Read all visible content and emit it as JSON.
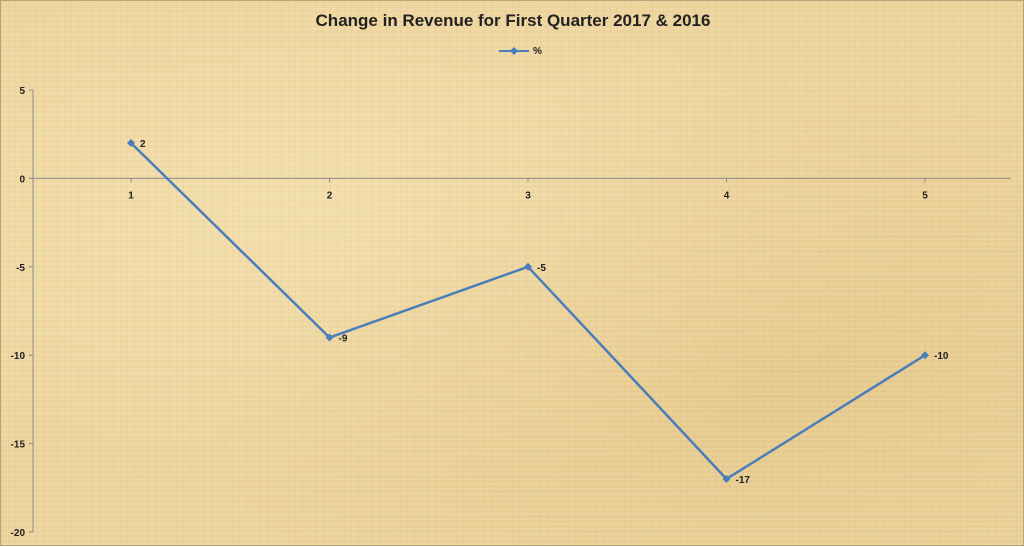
{
  "chart_data": {
    "type": "line",
    "title": "Change in Revenue for First Quarter 2017 & 2016",
    "x": [
      1,
      2,
      3,
      4,
      5
    ],
    "series": [
      {
        "name": "%",
        "values": [
          2,
          -9,
          -5,
          -17,
          -10
        ],
        "color": "#4a7ebb"
      }
    ],
    "data_labels": [
      "2",
      "-9",
      "-5",
      "-17",
      "-10"
    ],
    "x_tick_labels": [
      "1",
      "2",
      "3",
      "4",
      "5"
    ],
    "y_tick_labels": [
      "5",
      "0",
      "-5",
      "-10",
      "-15",
      "-20"
    ],
    "y_ticks": [
      5,
      0,
      -5,
      -10,
      -15,
      -20
    ],
    "ylim": [
      -20,
      5
    ],
    "xlabel": "",
    "ylabel": "",
    "grid": false,
    "legend_position": "top-center",
    "axis_color": "#8c8c8c"
  }
}
